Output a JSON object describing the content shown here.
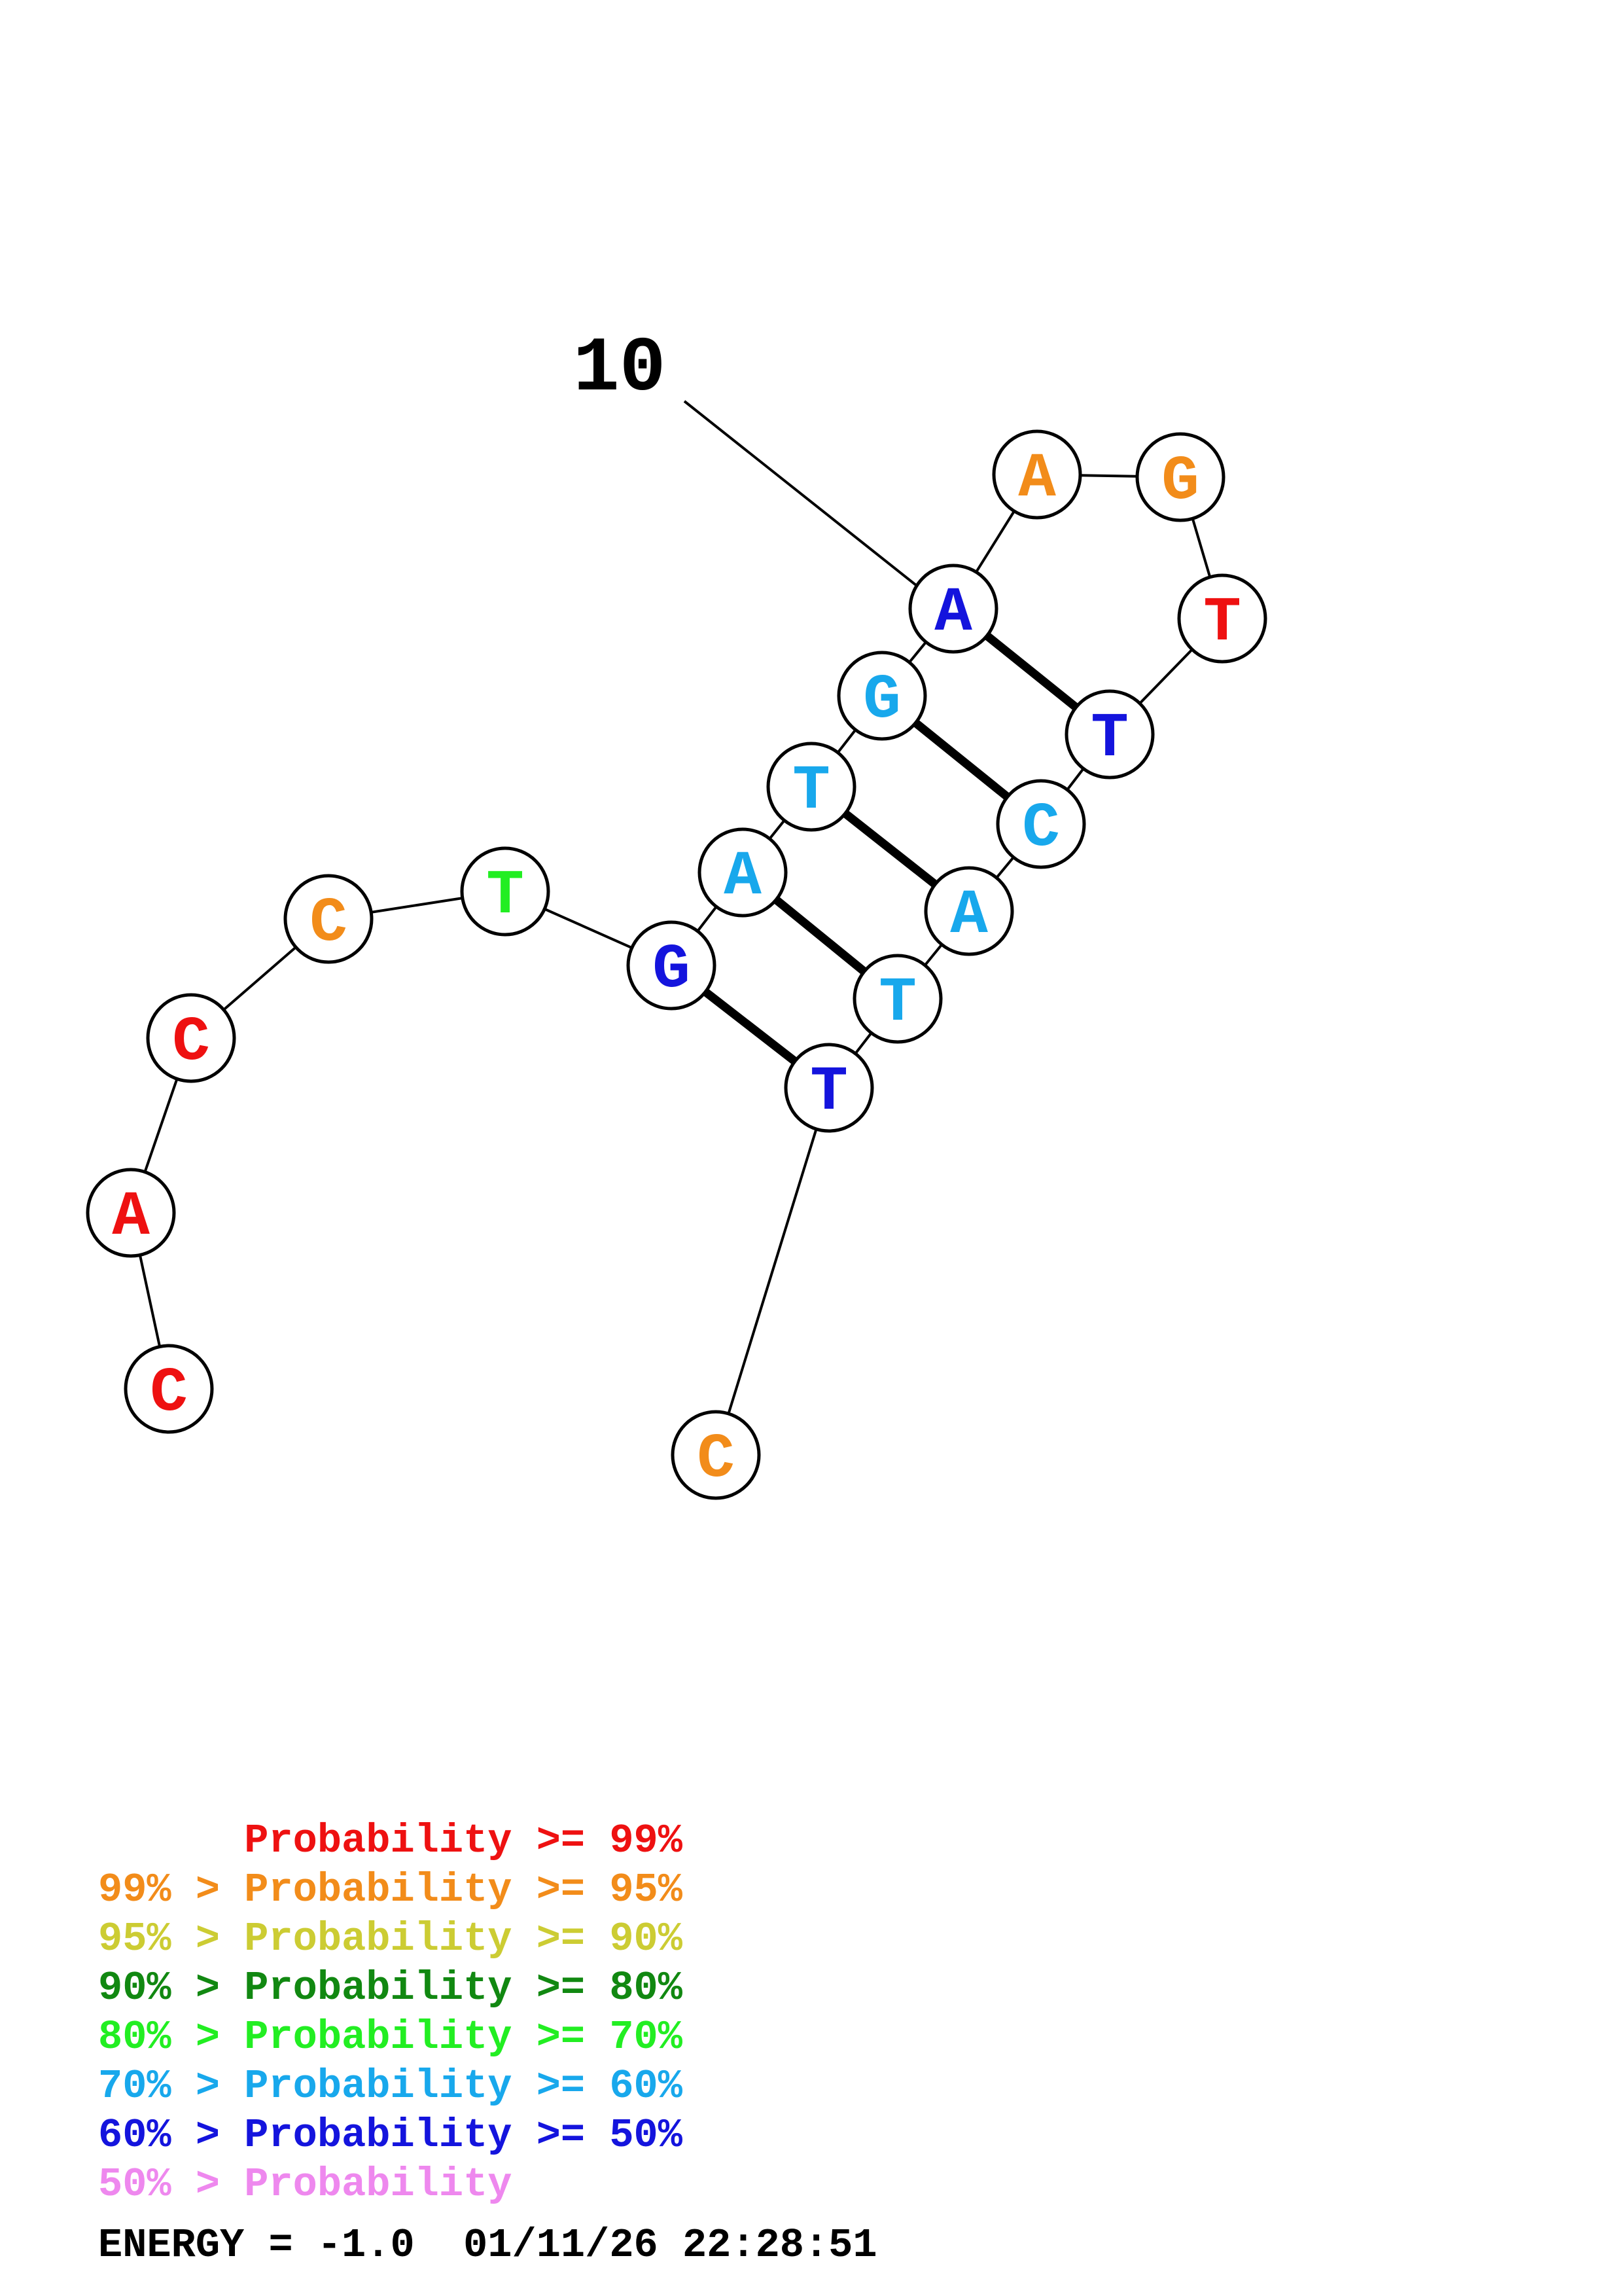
{
  "structure": {
    "position_label": "10",
    "nucleotides": [
      {
        "base": "C",
        "color": "#ee1111"
      },
      {
        "base": "A",
        "color": "#ee1111"
      },
      {
        "base": "C",
        "color": "#ee1111"
      },
      {
        "base": "C",
        "color": "#f28c1a"
      },
      {
        "base": "T",
        "color": "#22ee22"
      },
      {
        "base": "G",
        "color": "#1414dd"
      },
      {
        "base": "A",
        "color": "#18a8ec"
      },
      {
        "base": "T",
        "color": "#18a8ec"
      },
      {
        "base": "G",
        "color": "#18a8ec"
      },
      {
        "base": "A",
        "color": "#1414dd"
      },
      {
        "base": "A",
        "color": "#f28c1a"
      },
      {
        "base": "G",
        "color": "#f28c1a"
      },
      {
        "base": "T",
        "color": "#ee1111"
      },
      {
        "base": "T",
        "color": "#1414dd"
      },
      {
        "base": "C",
        "color": "#18a8ec"
      },
      {
        "base": "A",
        "color": "#18a8ec"
      },
      {
        "base": "T",
        "color": "#18a8ec"
      },
      {
        "base": "T",
        "color": "#1414dd"
      },
      {
        "base": "C",
        "color": "#f28c1a"
      }
    ],
    "pairs": [
      [
        10,
        14
      ],
      [
        9,
        15
      ],
      [
        8,
        16
      ],
      [
        7,
        17
      ],
      [
        6,
        18
      ]
    ]
  },
  "legend": [
    {
      "prefix": "    ",
      "text": "Probability >= 99%",
      "color": "#ee1111"
    },
    {
      "prefix": "99% > ",
      "text": "Probability >= 95%",
      "color": "#f28c1a"
    },
    {
      "prefix": "95% > ",
      "text": "Probability >= 90%",
      "color": "#cccc33"
    },
    {
      "prefix": "90% > ",
      "text": "Probability >= 80%",
      "color": "#118811"
    },
    {
      "prefix": "80% > ",
      "text": "Probability >= 70%",
      "color": "#22ee22"
    },
    {
      "prefix": "70% > ",
      "text": "Probability >= 60%",
      "color": "#18a8ec"
    },
    {
      "prefix": "60% > ",
      "text": "Probability >= 50%",
      "color": "#1414dd"
    },
    {
      "prefix": "50% > ",
      "text": "Probability",
      "color": "#ee88ee"
    }
  ],
  "footer": {
    "energy": "ENERGY = -1.0  01/11/26 22:28:51"
  }
}
